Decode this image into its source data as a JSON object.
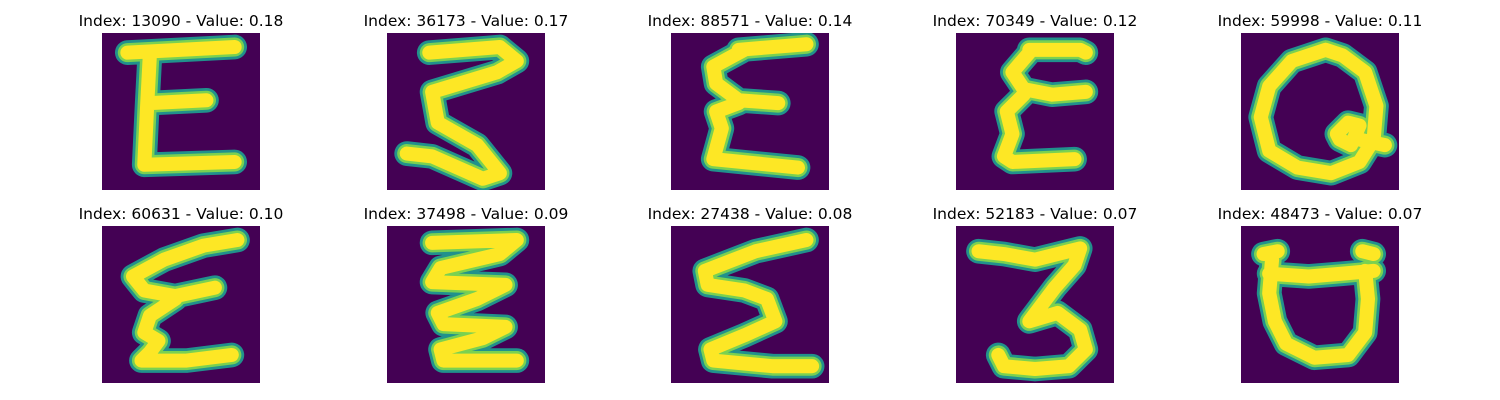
{
  "colors": {
    "background": "#440154",
    "glow_outer": "#21918c",
    "glow_mid": "#7ad151",
    "stroke": "#fde725"
  },
  "panels": [
    {
      "title": "Index: 13090 - Value: 0.18"
    },
    {
      "title": "Index: 36173 - Value: 0.17"
    },
    {
      "title": "Index: 88571 - Value: 0.14"
    },
    {
      "title": "Index: 70349 - Value: 0.12"
    },
    {
      "title": "Index: 59998 - Value: 0.11"
    },
    {
      "title": "Index: 60631 - Value: 0.10"
    },
    {
      "title": "Index: 37498 - Value: 0.09"
    },
    {
      "title": "Index: 27438 - Value: 0.08"
    },
    {
      "title": "Index: 52183 - Value: 0.07"
    },
    {
      "title": "Index: 48473 - Value: 0.07"
    }
  ]
}
